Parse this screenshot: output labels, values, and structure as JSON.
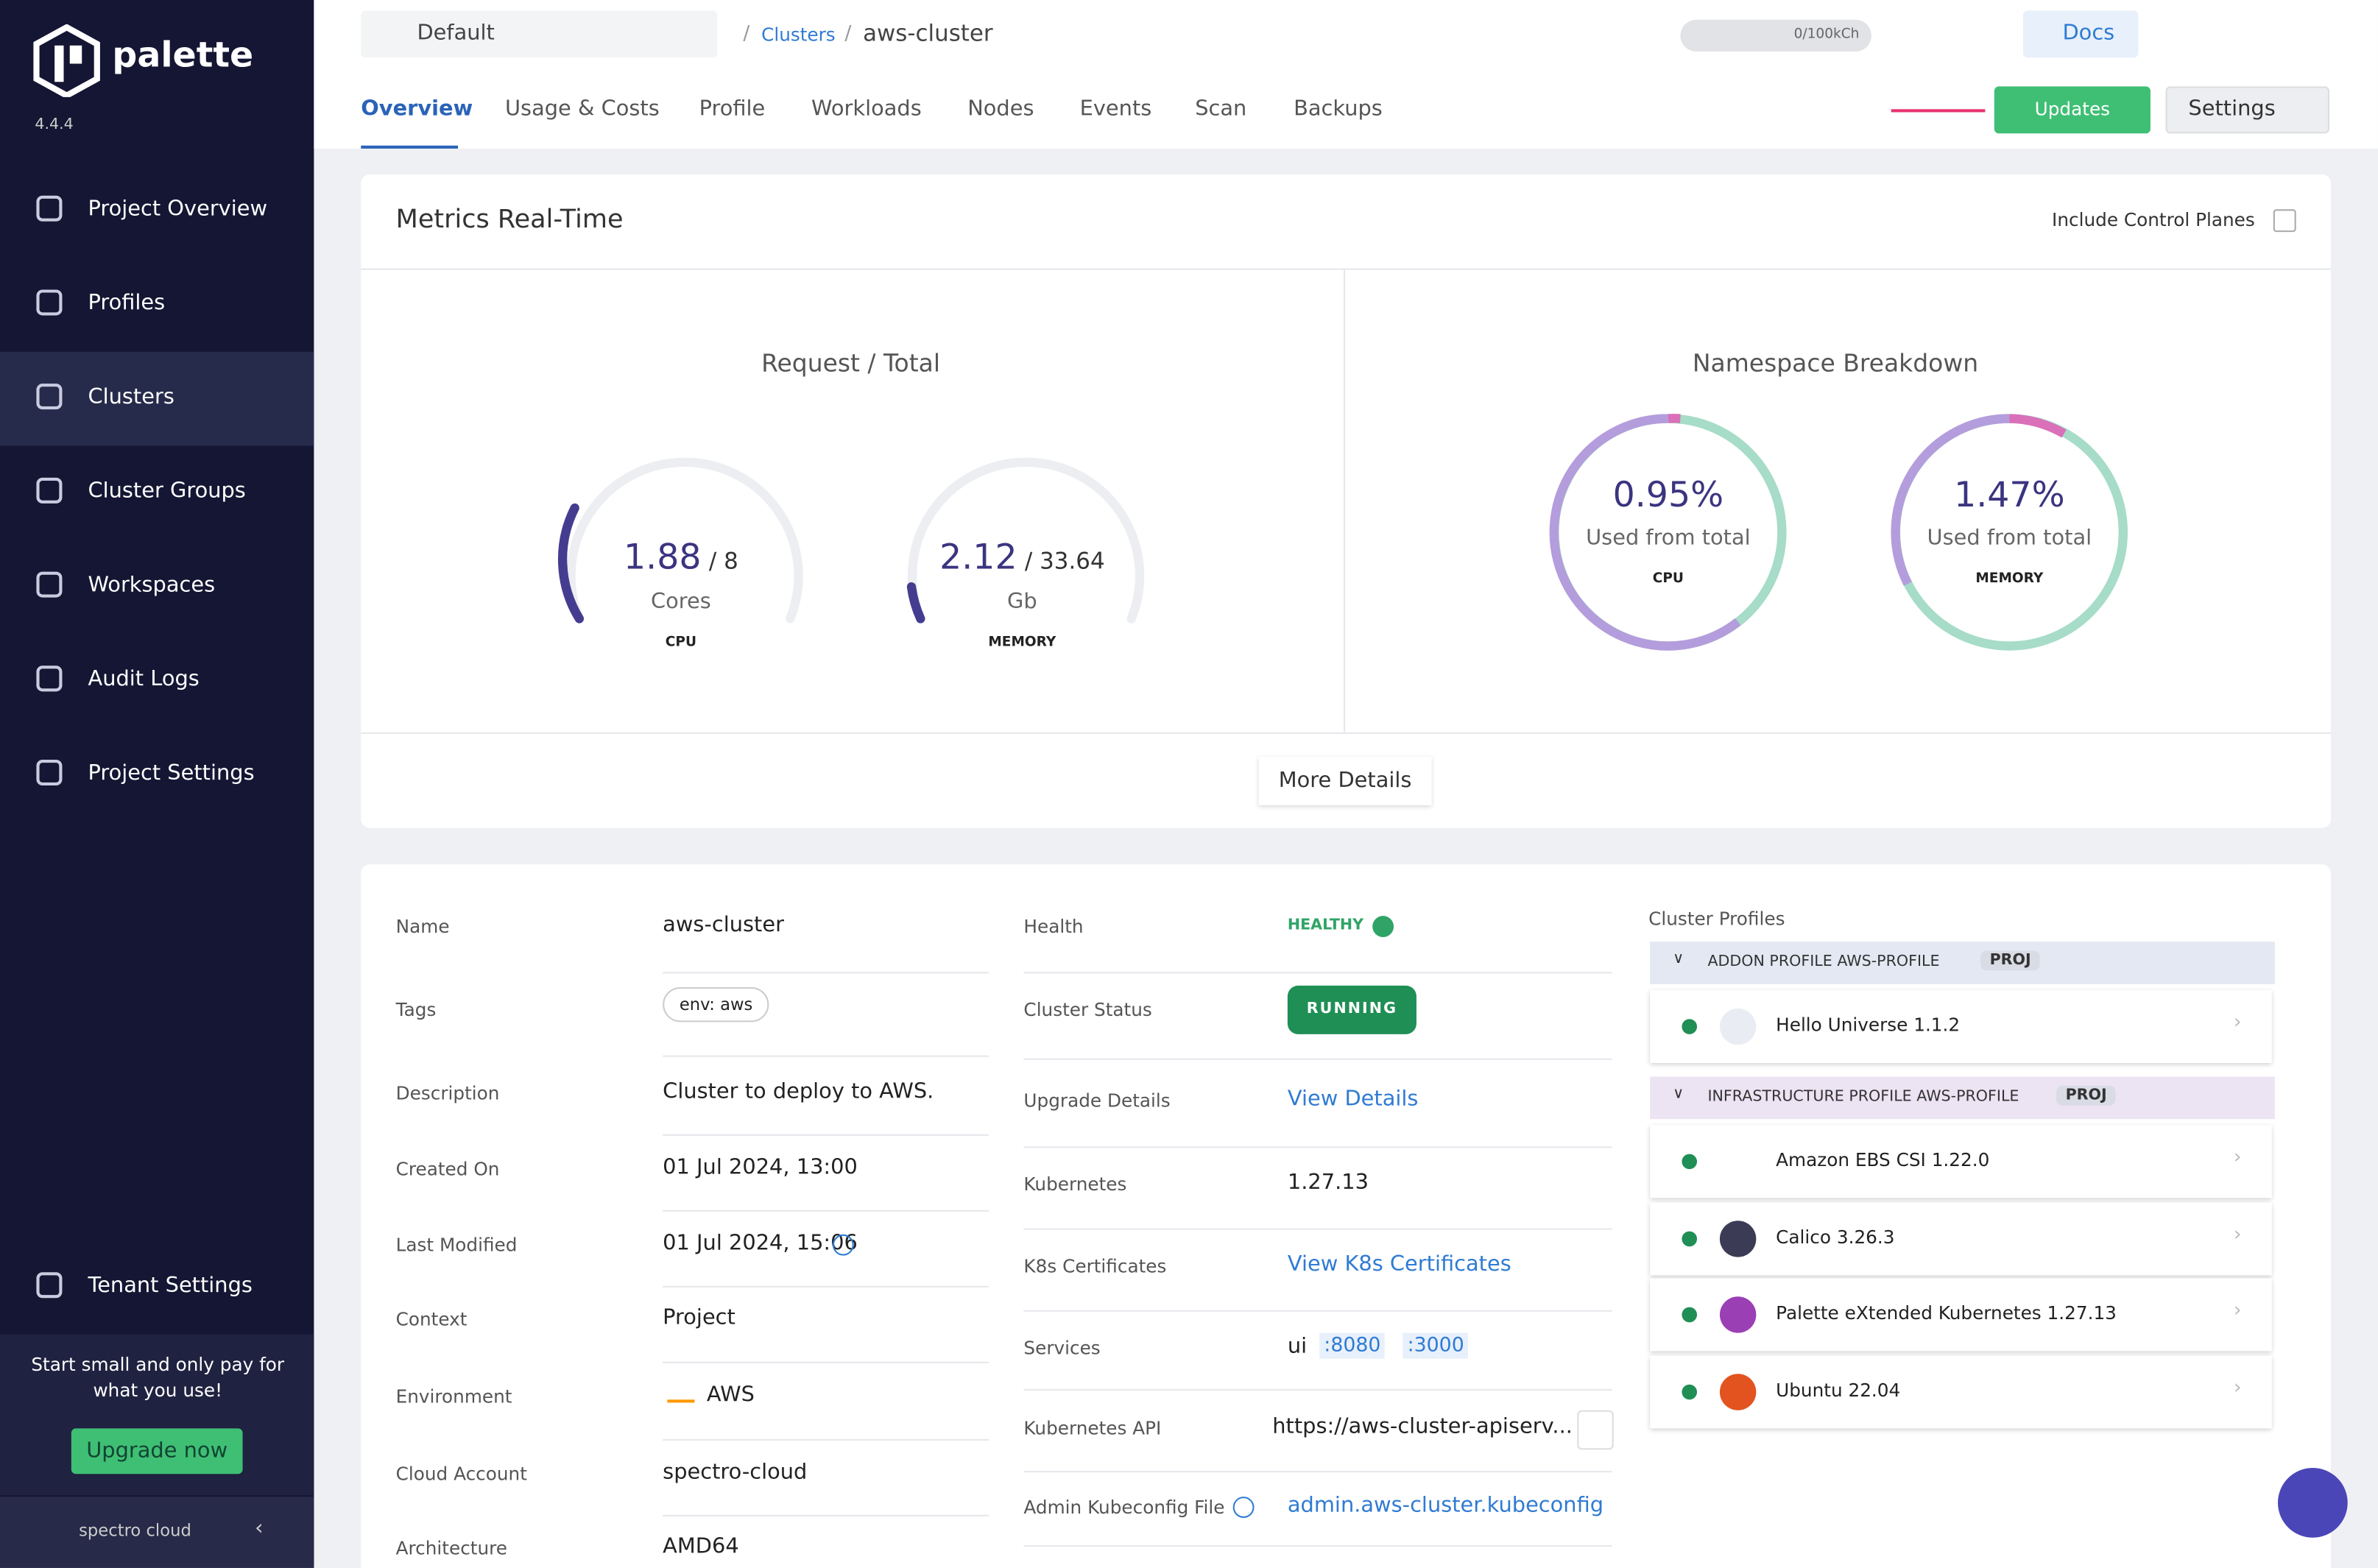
{
  "sidebar": {
    "brand": "palette",
    "version": "4.4.4",
    "nav": [
      "Project Overview",
      "Profiles",
      "Clusters",
      "Cluster Groups",
      "Workspaces",
      "Audit Logs",
      "Project Settings"
    ],
    "tenant": "Tenant Settings",
    "promo": "Start small and only pay for what you use!",
    "upgrade": "Upgrade now",
    "footer": "spectro cloud"
  },
  "header": {
    "project": "Default",
    "breadcrumb": [
      "Clusters",
      "aws-cluster"
    ],
    "usage": "0/100kCh",
    "docs": "Docs",
    "tabs": [
      "Overview",
      "Usage & Costs",
      "Profile",
      "Workloads",
      "Nodes",
      "Events",
      "Scan",
      "Backups"
    ],
    "updates": "Updates",
    "settings": "Settings"
  },
  "metrics": {
    "title": "Metrics Real-Time",
    "toggle": "Include Control Planes",
    "request": {
      "title": "Request / Total",
      "gauges": [
        {
          "value": "1.88",
          "total": "/ 8",
          "unit": "Cores",
          "label": "CPU"
        },
        {
          "value": "2.12",
          "total": "/ 33.64",
          "unit": "Gb",
          "label": "MEMORY"
        }
      ]
    },
    "namespace": {
      "title": "Namespace Breakdown",
      "rings": [
        {
          "value": "0.95%",
          "text": "Used from total",
          "label": "CPU"
        },
        {
          "value": "1.47%",
          "text": "Used from total",
          "label": "MEMORY"
        }
      ]
    },
    "more": "More Details"
  },
  "details": {
    "left": [
      [
        "Name",
        "aws-cluster"
      ],
      [
        "Tags",
        "env: aws"
      ],
      [
        "Description",
        "Cluster to deploy to AWS."
      ],
      [
        "Created On",
        "01 Jul 2024, 13:00"
      ],
      [
        "Last Modified",
        "01 Jul 2024, 15:06"
      ],
      [
        "Context",
        "Project"
      ],
      [
        "Environment",
        "AWS"
      ],
      [
        "Cloud Account",
        "spectro-cloud"
      ],
      [
        "Architecture",
        "AMD64"
      ]
    ],
    "right": [
      [
        "Health",
        "HEALTHY"
      ],
      [
        "Cluster Status",
        "RUNNING"
      ],
      [
        "Upgrade Details",
        "View Details"
      ],
      [
        "Kubernetes",
        "1.27.13"
      ],
      [
        "K8s Certificates",
        "View K8s Certificates"
      ],
      [
        "Services",
        {
          "name": "ui",
          "ports": [
            ":8080",
            ":3000"
          ]
        }
      ],
      [
        "Kubernetes API",
        "https://aws-cluster-apiserv..."
      ],
      [
        "Admin Kubeconfig File",
        "admin.aws-cluster.kubeconfig"
      ]
    ]
  },
  "profiles": {
    "title": "Cluster Profiles",
    "groups": [
      {
        "name": "ADDON PROFILE AWS-PROFILE",
        "badge": "PROJ",
        "items": [
          "Hello Universe 1.1.2"
        ]
      },
      {
        "name": "INFRASTRUCTURE PROFILE AWS-PROFILE",
        "badge": "PROJ",
        "items": [
          "Amazon EBS CSI 1.22.0",
          "Calico 3.26.3",
          "Palette eXtended Kubernetes 1.27.13",
          "Ubuntu 22.04"
        ]
      }
    ]
  }
}
